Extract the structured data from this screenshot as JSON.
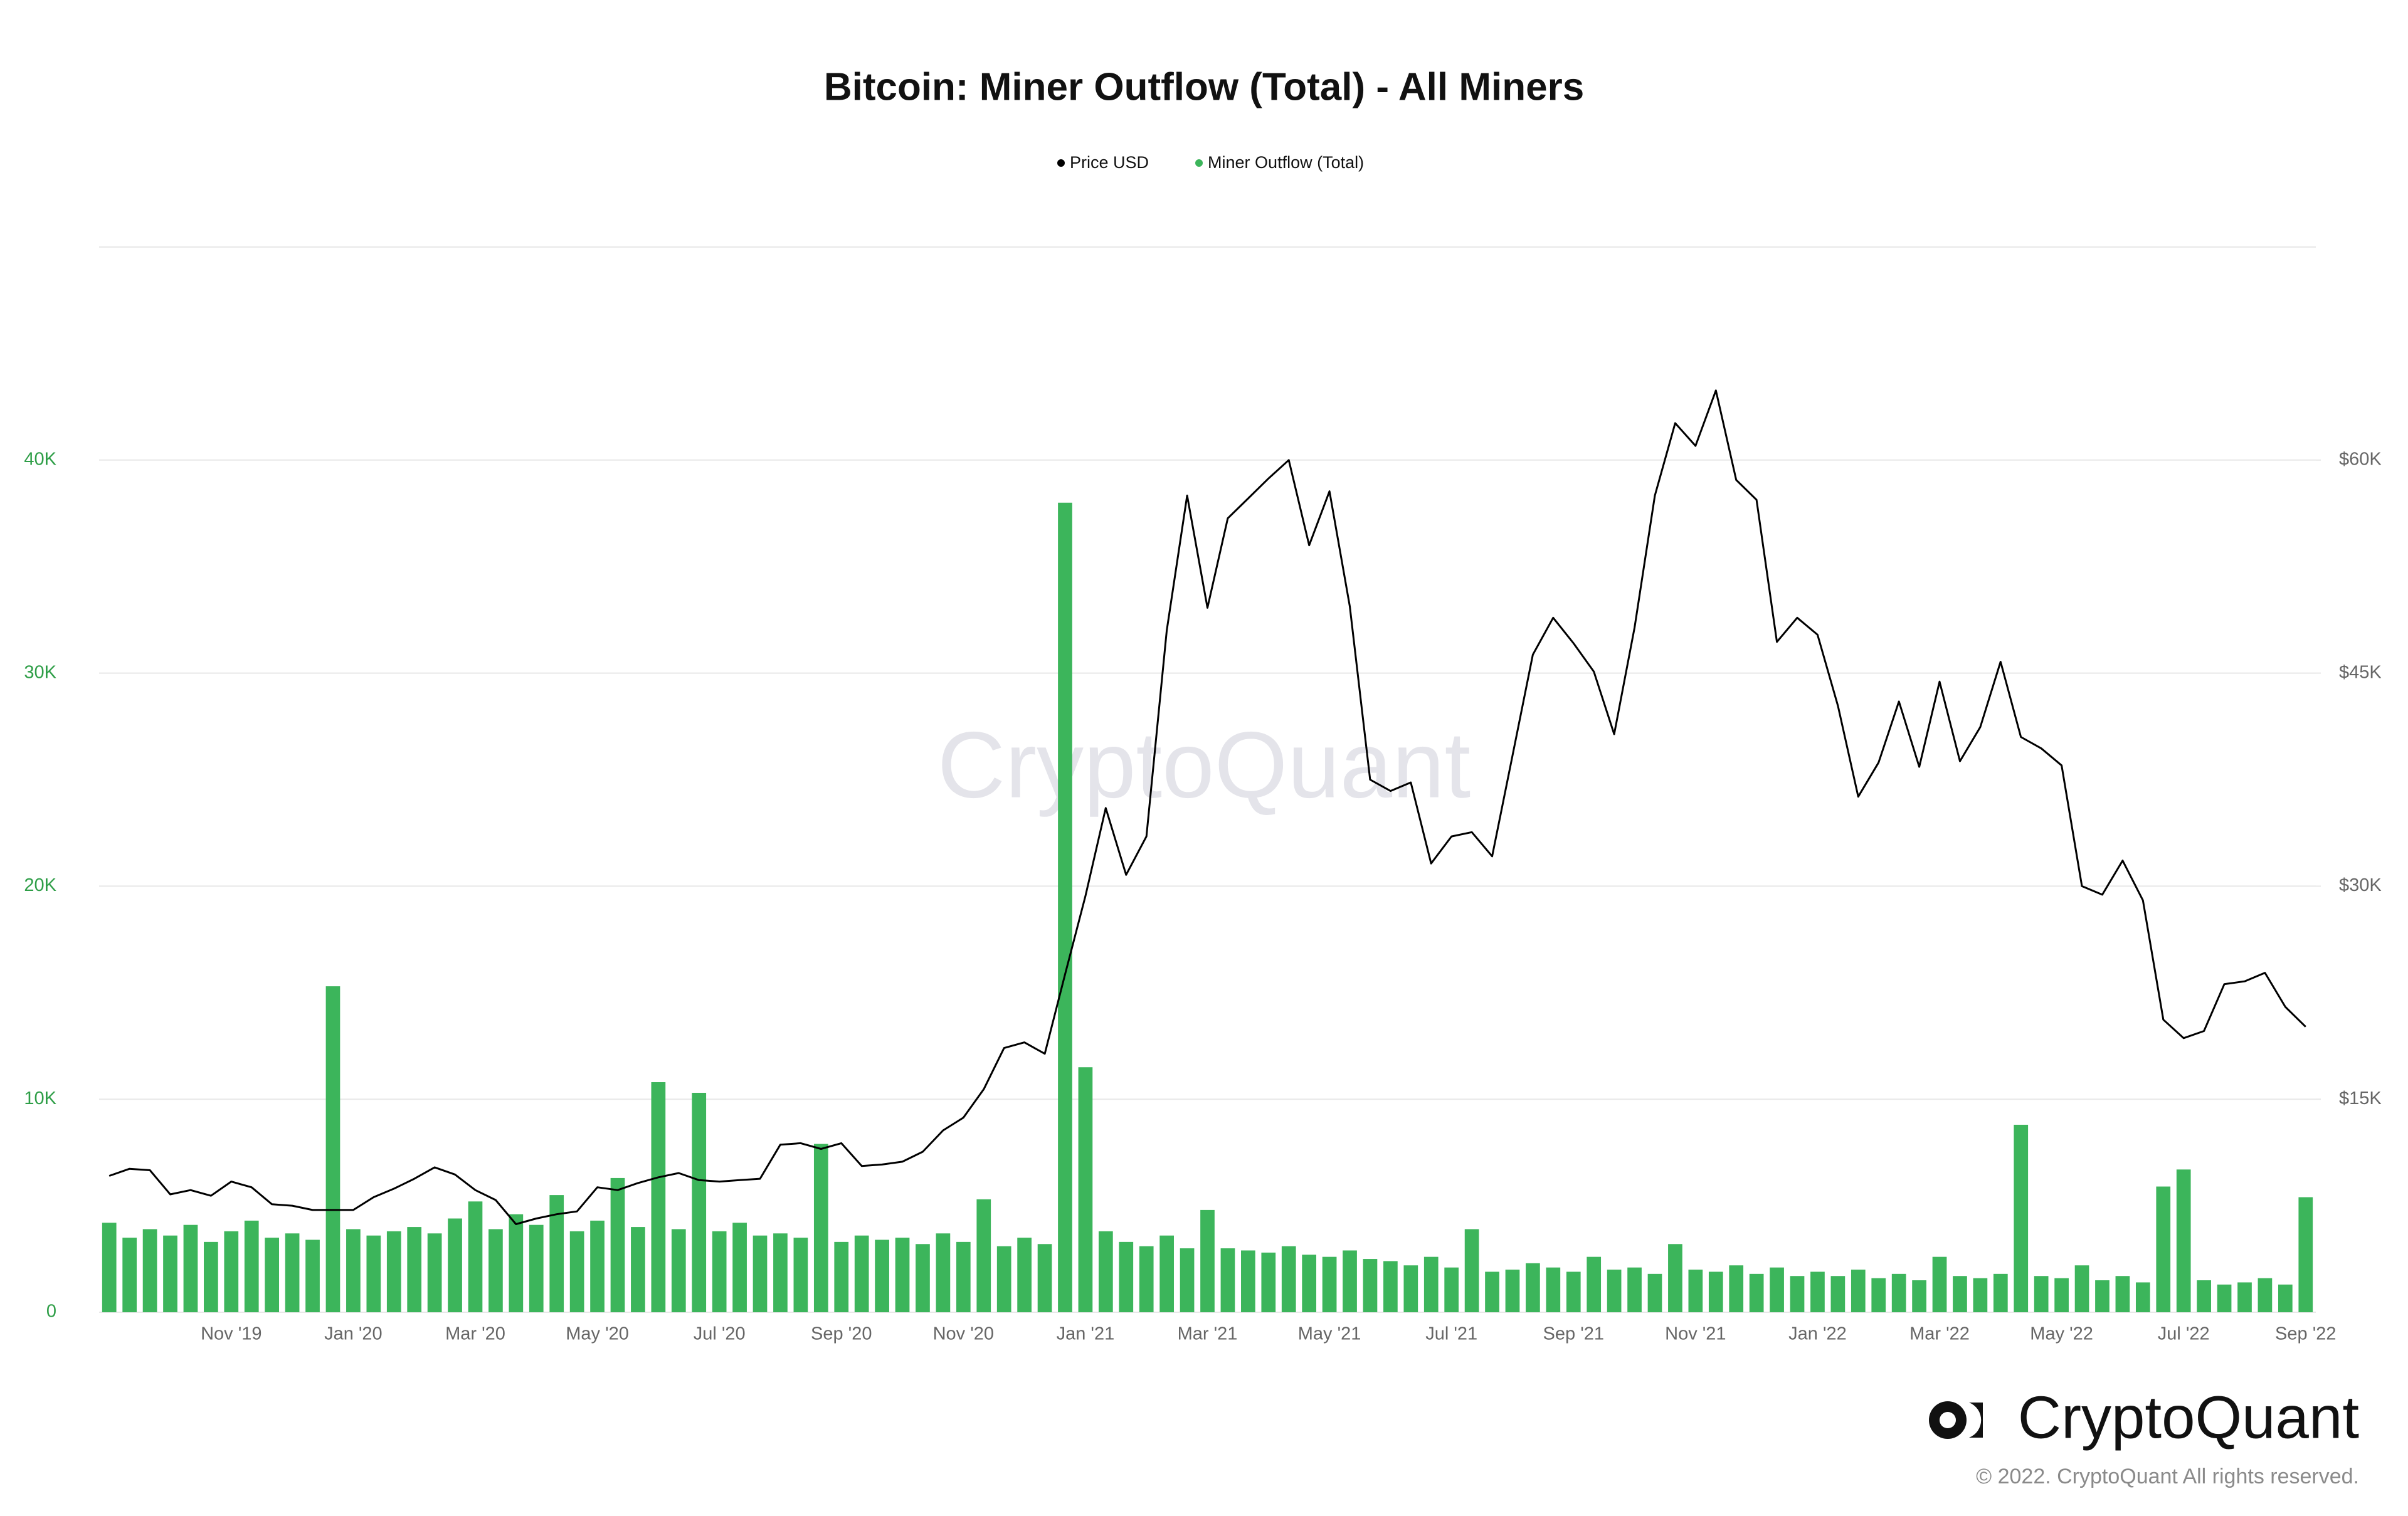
{
  "chart_data": {
    "type": "combo",
    "title": "Bitcoin: Miner Outflow (Total) - All Miners",
    "watermark": "CryptoQuant",
    "brand": "CryptoQuant",
    "copyright": "© 2022. CryptoQuant All rights reserved.",
    "grid": true,
    "legend": "top",
    "categories": [
      null,
      null,
      null,
      null,
      null,
      null,
      "Nov '19",
      null,
      null,
      null,
      null,
      null,
      "Jan '20",
      null,
      null,
      null,
      null,
      null,
      "Mar '20",
      null,
      null,
      null,
      null,
      null,
      "May '20",
      null,
      null,
      null,
      null,
      null,
      "Jul '20",
      null,
      null,
      null,
      null,
      null,
      "Sep '20",
      null,
      null,
      null,
      null,
      null,
      "Nov '20",
      null,
      null,
      null,
      null,
      null,
      "Jan '21",
      null,
      null,
      null,
      null,
      null,
      "Mar '21",
      null,
      null,
      null,
      null,
      null,
      "May '21",
      null,
      null,
      null,
      null,
      null,
      "Jul '21",
      null,
      null,
      null,
      null,
      null,
      "Sep '21",
      null,
      null,
      null,
      null,
      null,
      "Nov '21",
      null,
      null,
      null,
      null,
      null,
      "Jan '22",
      null,
      null,
      null,
      null,
      null,
      "Mar '22",
      null,
      null,
      null,
      null,
      null,
      "May '22",
      null,
      null,
      null,
      null,
      null,
      "Jul '22",
      null,
      null,
      null,
      null,
      null,
      "Sep '22"
    ],
    "series": [
      {
        "name": "Price USD",
        "type": "line",
        "axis": "y2",
        "color": "#000000",
        "values": [
          9600,
          10100,
          10000,
          8300,
          8600,
          8200,
          9200,
          8800,
          7600,
          7500,
          7200,
          7200,
          7200,
          8100,
          8700,
          9400,
          10200,
          9700,
          8600,
          7900,
          6200,
          6600,
          6900,
          7100,
          8800,
          8600,
          9100,
          9500,
          9800,
          9300,
          9200,
          9300,
          9400,
          11800,
          11900,
          11500,
          11900,
          10300,
          10400,
          10600,
          11300,
          12800,
          13700,
          15700,
          18600,
          19000,
          18200,
          23800,
          29300,
          35500,
          30800,
          33500,
          48000,
          57500,
          49600,
          55900,
          57300,
          58700,
          60000,
          54000,
          57800,
          49700,
          37500,
          36700,
          37300,
          31600,
          33500,
          33800,
          32100,
          39200,
          46300,
          48900,
          47100,
          45100,
          40700,
          48200,
          57500,
          62600,
          61000,
          64900,
          58600,
          57200,
          47200,
          48900,
          47700,
          42700,
          36300,
          38700,
          43000,
          38400,
          44400,
          38800,
          41200,
          45800,
          40500,
          39700,
          38500,
          30000,
          29400,
          31800,
          29000,
          20600,
          19300,
          19800,
          23100,
          23300,
          23900,
          21500,
          20100
        ]
      },
      {
        "name": "Miner Outflow (Total)",
        "type": "bar",
        "color": "#3cb55b",
        "values": [
          4200,
          3500,
          3900,
          3600,
          4100,
          3300,
          3800,
          4300,
          3500,
          3700,
          3400,
          15300,
          3900,
          3600,
          3800,
          4000,
          3700,
          4400,
          5200,
          3900,
          4600,
          4100,
          5500,
          3800,
          4300,
          6300,
          4000,
          10800,
          3900,
          10300,
          3800,
          4200,
          3600,
          3700,
          3500,
          7900,
          3300,
          3600,
          3400,
          3500,
          3200,
          3700,
          3300,
          5300,
          3100,
          3500,
          3200,
          38000,
          11500,
          3800,
          3300,
          3100,
          3600,
          3000,
          4800,
          3000,
          2900,
          2800,
          3100,
          2700,
          2600,
          2900,
          2500,
          2400,
          2200,
          2600,
          2100,
          3900,
          1900,
          2000,
          2300,
          2100,
          1900,
          2600,
          2000,
          2100,
          1800,
          3200,
          2000,
          1900,
          2200,
          1800,
          2100,
          1700,
          1900,
          1700,
          2000,
          1600,
          1800,
          1500,
          2600,
          1700,
          1600,
          1800,
          8800,
          1700,
          1600,
          2200,
          1500,
          1700,
          1400,
          5900,
          6700,
          1500,
          1300,
          1400,
          1600,
          1300,
          5400
        ]
      }
    ],
    "ylim": [
      0,
      50000
    ],
    "yticks": [
      0,
      {
        "value": 10000,
        "label": "10K"
      },
      {
        "value": 20000,
        "label": "20K"
      },
      {
        "value": 30000,
        "label": "30K"
      },
      {
        "value": 40000,
        "label": "40K"
      }
    ],
    "y2lim": [
      0,
      75000
    ],
    "y2ticks": [
      {
        "value": 15000,
        "label": "$15K"
      },
      {
        "value": 30000,
        "label": "$30K"
      },
      {
        "value": 45000,
        "label": "$45K"
      },
      {
        "value": 60000,
        "label": "$60K"
      }
    ]
  }
}
